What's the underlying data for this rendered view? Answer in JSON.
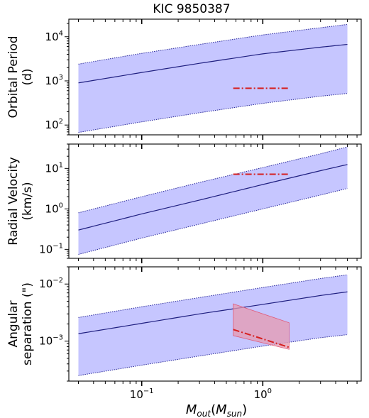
{
  "figure": {
    "title": "KIC 9850387",
    "xlabel_main": "M",
    "xlabel_sub": "out",
    "xlabel_paren_open": "(",
    "xlabel_unit_main": "M",
    "xlabel_unit_sub": "sun",
    "xlabel_paren_close": ")"
  },
  "colors": {
    "band_fill": "#c6c6ff",
    "band_edge": "#2a2a9a",
    "median_line": "#1f1f80",
    "observed_line": "#d62020",
    "observed_band": "#e69ab0",
    "observed_band_edge": "#e05a7a"
  },
  "chart_data": [
    {
      "type": "area",
      "panel": "Orbital Period",
      "ylabel": [
        "Orbital Period",
        "(d)"
      ],
      "xscale": "log",
      "yscale": "log",
      "xlim": [
        0.025,
        6.5
      ],
      "ylim": [
        60,
        25000
      ],
      "x_ticks": [
        "10^-1",
        "10^0"
      ],
      "y_ticks": [
        {
          "value": 100,
          "label": "10^2"
        },
        {
          "value": 1000,
          "label": "10^3"
        },
        {
          "value": 10000,
          "label": "10^4"
        }
      ],
      "series": [
        {
          "role": "median",
          "x": [
            0.03,
            0.1,
            0.3,
            1.0,
            3.0,
            5.0
          ],
          "y": [
            900,
            1550,
            2500,
            4100,
            5800,
            6700
          ]
        },
        {
          "role": "lower",
          "x": [
            0.03,
            0.1,
            0.3,
            1.0,
            3.0,
            5.0
          ],
          "y": [
            68,
            118,
            190,
            310,
            450,
            520
          ]
        },
        {
          "role": "upper",
          "x": [
            0.03,
            0.1,
            0.3,
            1.0,
            3.0,
            5.0
          ],
          "y": [
            2400,
            4200,
            6700,
            11000,
            16000,
            19000
          ]
        },
        {
          "role": "observed",
          "x": [
            0.57,
            1.65
          ],
          "y": [
            680,
            680
          ]
        }
      ]
    },
    {
      "type": "area",
      "panel": "Radial Velocity",
      "ylabel": [
        "Radial Velocity",
        "(km/s)"
      ],
      "xscale": "log",
      "yscale": "log",
      "xlim": [
        0.025,
        6.5
      ],
      "ylim": [
        0.06,
        40
      ],
      "x_ticks": [
        "10^-1",
        "10^0"
      ],
      "y_ticks": [
        {
          "value": 0.1,
          "label": "10^-1"
        },
        {
          "value": 1,
          "label": "10^0"
        },
        {
          "value": 10,
          "label": "10^1"
        }
      ],
      "series": [
        {
          "role": "median",
          "x": [
            0.03,
            0.1,
            0.3,
            1.0,
            3.0,
            5.0
          ],
          "y": [
            0.3,
            0.75,
            1.65,
            4.0,
            8.8,
            12.5
          ]
        },
        {
          "role": "lower",
          "x": [
            0.03,
            0.1,
            0.3,
            1.0,
            3.0,
            5.0
          ],
          "y": [
            0.075,
            0.19,
            0.42,
            1.0,
            2.2,
            3.2
          ]
        },
        {
          "role": "upper",
          "x": [
            0.03,
            0.1,
            0.3,
            1.0,
            3.0,
            5.0
          ],
          "y": [
            0.8,
            2.0,
            4.5,
            10.5,
            23.0,
            34.0
          ]
        },
        {
          "role": "observed",
          "x": [
            0.57,
            1.65
          ],
          "y": [
            7.2,
            7.2
          ]
        }
      ]
    },
    {
      "type": "area",
      "panel": "Angular separation",
      "ylabel": [
        "Angular",
        "separation (\")"
      ],
      "xscale": "log",
      "yscale": "log",
      "xlim": [
        0.025,
        6.5
      ],
      "ylim": [
        0.0002,
        0.02
      ],
      "x_ticks": [
        "10^-1",
        "10^0"
      ],
      "y_ticks": [
        {
          "value": 0.001,
          "label": "10^-3"
        },
        {
          "value": 0.01,
          "label": "10^-2"
        }
      ],
      "series": [
        {
          "role": "median",
          "x": [
            0.03,
            0.1,
            0.3,
            1.0,
            3.0,
            5.0
          ],
          "y": [
            0.00135,
            0.00205,
            0.003,
            0.0044,
            0.0063,
            0.0073
          ]
        },
        {
          "role": "lower",
          "x": [
            0.03,
            0.1,
            0.3,
            1.0,
            3.0,
            5.0
          ],
          "y": [
            0.00025,
            0.00038,
            0.00055,
            0.00082,
            0.00115,
            0.0013
          ]
        },
        {
          "role": "upper",
          "x": [
            0.03,
            0.1,
            0.3,
            1.0,
            3.0,
            5.0
          ],
          "y": [
            0.0026,
            0.004,
            0.0058,
            0.0087,
            0.0125,
            0.0145
          ]
        },
        {
          "role": "observed",
          "x": [
            0.57,
            1.65
          ],
          "y": [
            0.0016,
            0.00078
          ]
        },
        {
          "role": "observed_lower",
          "x": [
            0.57,
            1.65
          ],
          "y": [
            0.00125,
            0.00072
          ]
        },
        {
          "role": "observed_upper",
          "x": [
            0.57,
            1.65
          ],
          "y": [
            0.0045,
            0.0021
          ]
        }
      ]
    }
  ]
}
